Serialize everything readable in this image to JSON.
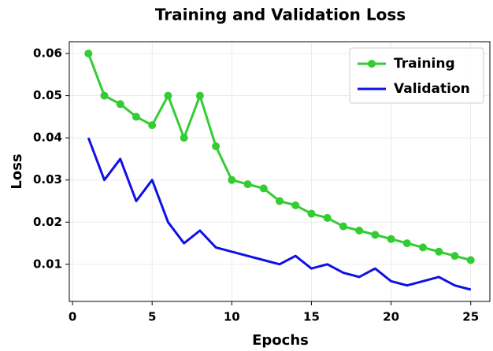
{
  "chart_data": {
    "type": "line",
    "title": "Training and Validation Loss",
    "x_label": "Epochs",
    "y_label": "Loss",
    "x": [
      1,
      2,
      3,
      4,
      5,
      6,
      7,
      8,
      9,
      10,
      11,
      12,
      13,
      14,
      15,
      16,
      17,
      18,
      19,
      20,
      21,
      22,
      23,
      24,
      25
    ],
    "series": [
      {
        "name": "Training",
        "color": "#33cc33",
        "marker": true,
        "values": [
          0.06,
          0.05,
          0.048,
          0.045,
          0.043,
          0.05,
          0.04,
          0.05,
          0.038,
          0.03,
          0.029,
          0.028,
          0.025,
          0.024,
          0.022,
          0.021,
          0.019,
          0.018,
          0.017,
          0.016,
          0.015,
          0.014,
          0.013,
          0.012,
          0.011
        ]
      },
      {
        "name": "Validation",
        "color": "#1010e6",
        "marker": false,
        "values": [
          0.04,
          0.03,
          0.035,
          0.025,
          0.03,
          0.02,
          0.015,
          0.018,
          0.014,
          0.013,
          0.012,
          0.011,
          0.01,
          0.012,
          0.009,
          0.01,
          0.008,
          0.007,
          0.009,
          0.006,
          0.005,
          0.006,
          0.007,
          0.005,
          0.004
        ]
      }
    ],
    "xlim": [
      -0.2,
      26.2
    ],
    "ylim": [
      0.0012,
      0.0628
    ],
    "xticks": [
      0,
      5,
      10,
      15,
      20,
      25
    ],
    "yticks": [
      0.01,
      0.02,
      0.03,
      0.04,
      0.05,
      0.06
    ],
    "grid": true,
    "legend": "upper right"
  }
}
